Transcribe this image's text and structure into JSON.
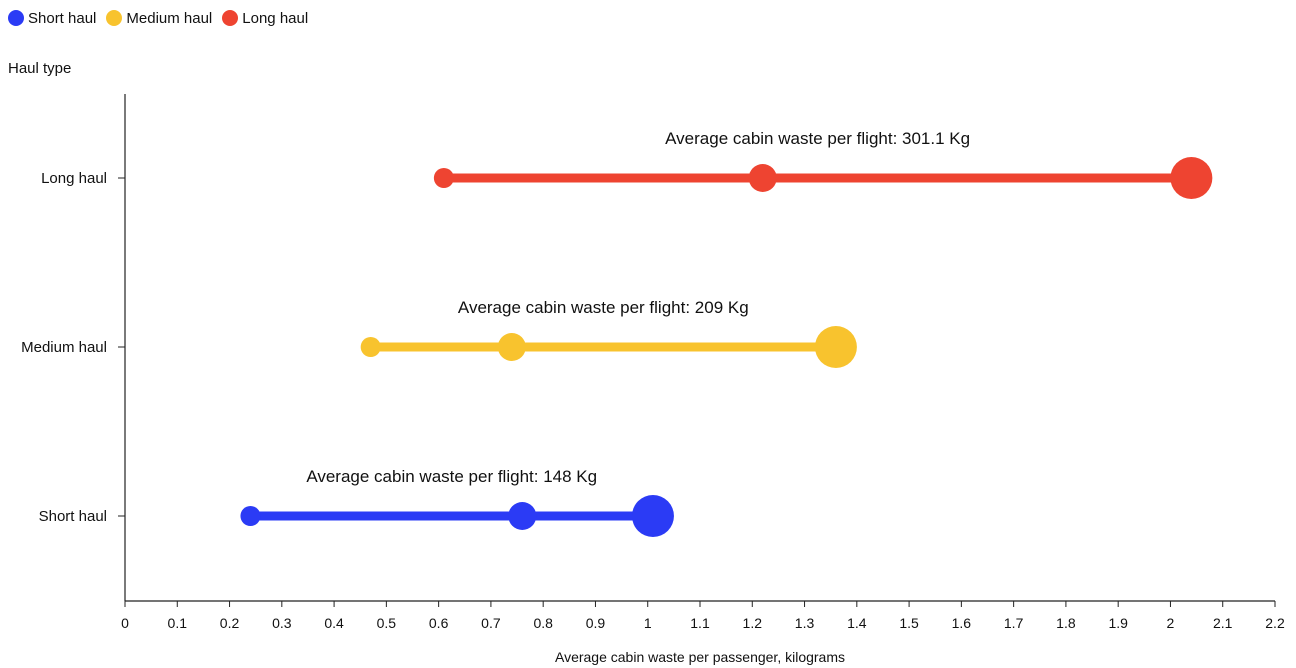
{
  "chart_data": {
    "type": "scatter",
    "subtype": "dumbbell",
    "ylabel": "Haul type",
    "xlabel": "Average cabin waste per passenger, kilograms",
    "xlim": [
      0,
      2.2
    ],
    "xticks": [
      "0",
      "0.1",
      "0.2",
      "0.3",
      "0.4",
      "0.5",
      "0.6",
      "0.7",
      "0.8",
      "0.9",
      "1",
      "1.1",
      "1.2",
      "1.3",
      "1.4",
      "1.5",
      "1.6",
      "1.7",
      "1.8",
      "1.9",
      "2",
      "2.1",
      "2.2"
    ],
    "categories": [
      "Long haul",
      "Medium haul",
      "Short haul"
    ],
    "legend_position": "top-left",
    "grid": false,
    "series": [
      {
        "name": "Short haul",
        "category": "Short haul",
        "color": "#2b3bf5",
        "values": [
          0.24,
          0.76,
          1.01
        ],
        "annotation": "Average cabin waste per flight: 148 Kg"
      },
      {
        "name": "Medium haul",
        "category": "Medium haul",
        "color": "#f8c32e",
        "values": [
          0.47,
          0.74,
          1.36
        ],
        "annotation": "Average cabin waste per flight: 209 Kg"
      },
      {
        "name": "Long haul",
        "category": "Long haul",
        "color": "#ee4431",
        "values": [
          0.61,
          1.22,
          2.04
        ],
        "annotation": "Average cabin waste per flight: 301.1 Kg"
      }
    ]
  }
}
